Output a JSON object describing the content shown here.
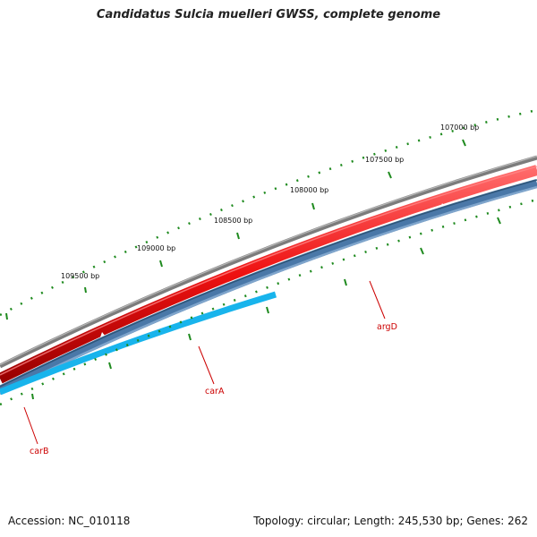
{
  "title": "Candidatus Sulcia muelleri GWSS, complete genome",
  "footer": {
    "accession": "Accession: NC_010118",
    "stats": "Topology: circular; Length: 245,530 bp; Genes: 262"
  },
  "ruler": {
    "labels": [
      "107000 bp",
      "107500 bp",
      "108000 bp",
      "108500 bp",
      "109000 bp",
      "109500 bp"
    ],
    "tick_color": "#1e8a1e"
  },
  "genes": [
    {
      "name": "argD",
      "color": "#cc0000"
    },
    {
      "name": "carA",
      "color": "#cc0000"
    },
    {
      "name": "carB",
      "color": "#cc0000"
    }
  ],
  "colors": {
    "backbone": "#808080",
    "forward_cds": "#ee1111",
    "reverse_cds": "#4f7fb0",
    "reverse_cds_light": "#18b4ec"
  }
}
